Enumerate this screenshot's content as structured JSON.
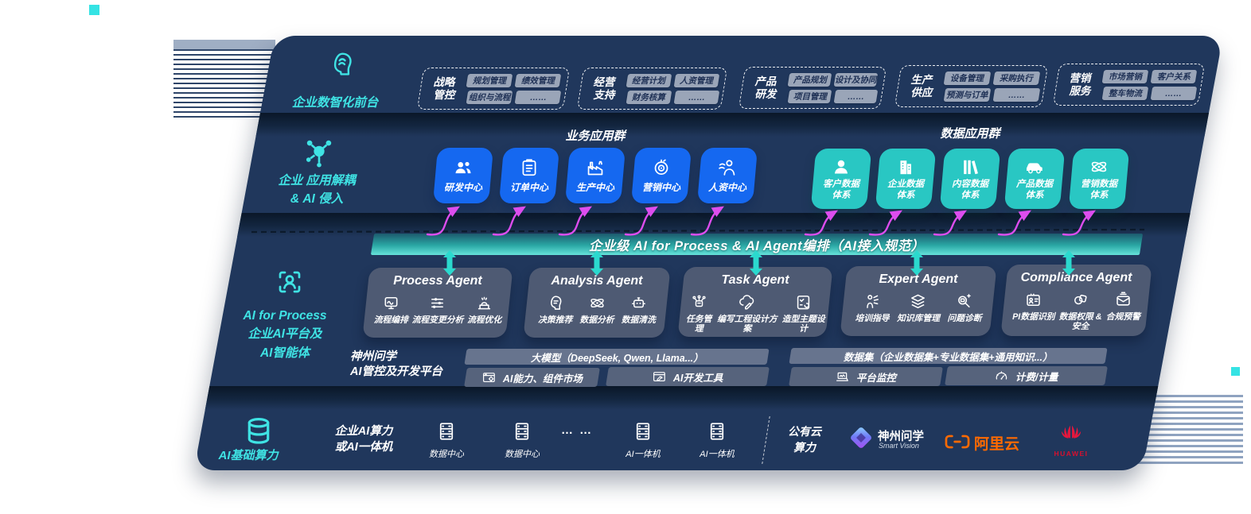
{
  "rail": {
    "front_label": "企业数智化前台",
    "front_icon": "brain",
    "app_label": "企业 应用解耦\n& AI 侵入",
    "app_icon": "molecule",
    "agent_label": "AI for Process\n企业AI平台及\nAI智能体",
    "agent_icon": "person-scan",
    "infra_label": "AI基础算力",
    "infra_icon": "database"
  },
  "front_office": {
    "groups": [
      {
        "title": "战略\n管控",
        "tags": [
          "规划管理",
          "绩效管理",
          "组织与流程",
          "……"
        ]
      },
      {
        "title": "经营\n支持",
        "tags": [
          "经营计划",
          "人资管理",
          "财务核算",
          "……"
        ]
      },
      {
        "title": "产品\n研发",
        "tags": [
          "产品规划",
          "设计及协同",
          "项目管理",
          "……"
        ]
      },
      {
        "title": "生产\n供应",
        "tags": [
          "设备管理",
          "采购执行",
          "预测与订单",
          "……"
        ]
      },
      {
        "title": "营销\n服务",
        "tags": [
          "市场营销",
          "客户关系",
          "整车物流",
          "……"
        ]
      }
    ]
  },
  "app_layer": {
    "business_title": "业务应用群",
    "business_tiles": [
      {
        "label": "研发中心",
        "icon": "team"
      },
      {
        "label": "订单中心",
        "icon": "clipboard"
      },
      {
        "label": "生产中心",
        "icon": "factory"
      },
      {
        "label": "营销中心",
        "icon": "target"
      },
      {
        "label": "人资中心",
        "icon": "person-wave"
      }
    ],
    "data_title": "数据应用群",
    "data_tiles": [
      {
        "label": "客户数据\n体系",
        "icon": "user"
      },
      {
        "label": "企业数据\n体系",
        "icon": "building"
      },
      {
        "label": "内容数据\n体系",
        "icon": "books"
      },
      {
        "label": "产品数据\n体系",
        "icon": "car"
      },
      {
        "label": "营销数据\n体系",
        "icon": "atom"
      }
    ]
  },
  "banner": {
    "text": "企业级 AI for Process & AI Agent编排（AI接入规范）"
  },
  "agents": [
    {
      "title": "Process Agent",
      "items": [
        {
          "label": "流程编排",
          "icon": "flow"
        },
        {
          "label": "流程变更分析",
          "icon": "sliders"
        },
        {
          "label": "流程优化",
          "icon": "machine"
        }
      ]
    },
    {
      "title": "Analysis Agent",
      "items": [
        {
          "label": "决策推荐",
          "icon": "head-chat"
        },
        {
          "label": "数据分析",
          "icon": "atom"
        },
        {
          "label": "数据清洗",
          "icon": "robot"
        }
      ]
    },
    {
      "title": "Task Agent",
      "items": [
        {
          "label": "任务管理",
          "icon": "task-nodes"
        },
        {
          "label": "编写工程设计方案",
          "icon": "cloud-pen"
        },
        {
          "label": "造型主题设计",
          "icon": "checklist"
        }
      ]
    },
    {
      "title": "Expert Agent",
      "items": [
        {
          "label": "培训指导",
          "icon": "trainer"
        },
        {
          "label": "知识库管理",
          "icon": "layers"
        },
        {
          "label": "问题诊断",
          "icon": "magnifier-bot"
        }
      ]
    },
    {
      "title": "Compliance Agent",
      "items": [
        {
          "label": "PI数据识别",
          "icon": "id-card"
        },
        {
          "label": "数据权限 &\n安全",
          "icon": "shapes"
        },
        {
          "label": "合规预警",
          "icon": "mail-alert"
        }
      ]
    }
  ],
  "platform": {
    "label": "神州问学\nAI管控及开发平台",
    "model_bar": "大模型（DeepSeek, Qwen, Llama...）",
    "capability_bar": {
      "label": "AI能力、组件市场",
      "icon": "window-gear"
    },
    "devtools_bar": {
      "label": "AI开发工具",
      "icon": "window-pen"
    },
    "dataset_bar": "数据集（企业数据集+专业数据集+通用知识...）",
    "monitor_bar": {
      "label": "平台监控",
      "icon": "laptop-chart"
    },
    "billing_bar": {
      "label": "计费/计量",
      "icon": "gauge"
    }
  },
  "infra": {
    "cluster_label": "企业AI算力\n或AI一体机",
    "nodes": [
      {
        "label": "数据中心",
        "icon": "server"
      },
      {
        "label": "数据中心",
        "icon": "server"
      },
      {
        "label": "AI一体机",
        "icon": "server"
      },
      {
        "label": "AI一体机",
        "icon": "server"
      }
    ],
    "ellipsis": "… …",
    "cloud_label": "公有云\n算力",
    "partners": {
      "shenzhou": {
        "name": "神州问学",
        "sub": "Smart Vision",
        "icon": "diamond"
      },
      "alicloud": {
        "name": "阿里云",
        "icon": "brackets"
      },
      "huawei": {
        "name": "HUAWEI",
        "icon": "flower"
      }
    }
  },
  "colors": {
    "accent_cyan": "#3FE3E4",
    "arrow_magenta": "#DD4DEE",
    "tile_blue": "#1568F0",
    "tile_teal": "#29C7C3",
    "panel_navy": "#20375C"
  }
}
